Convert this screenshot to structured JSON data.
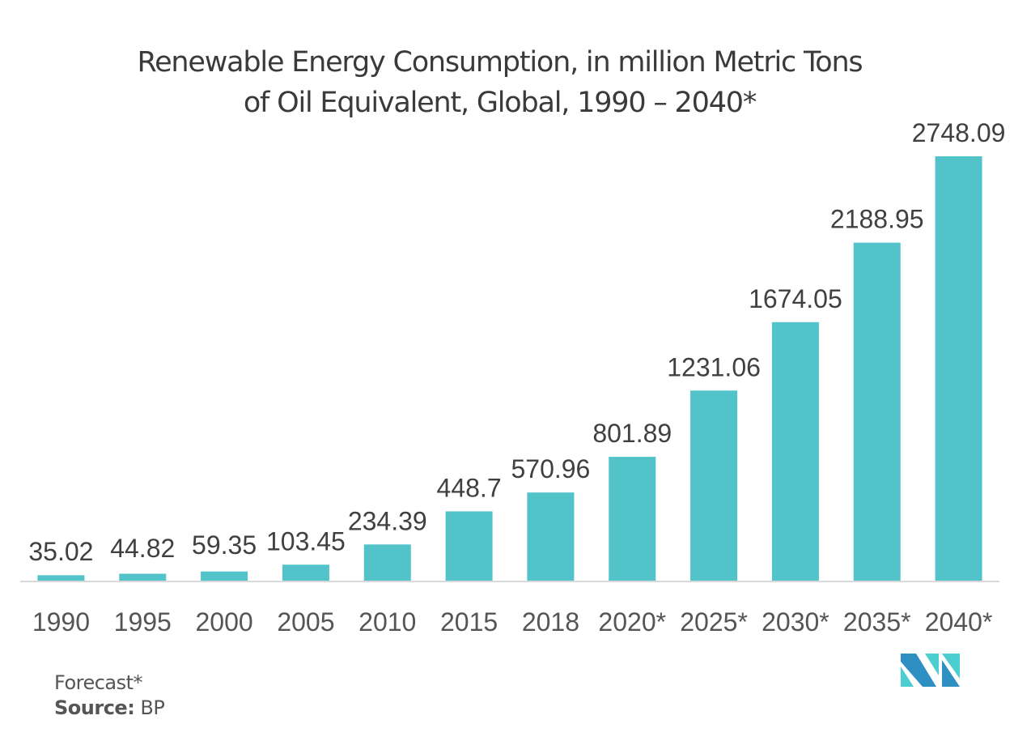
{
  "chart_data": {
    "type": "bar",
    "title": "Renewable Energy Consumption, in million Metric Tons of Oil Equivalent, Global, 1990 – 2040*",
    "title_lines": [
      "Renewable Energy Consumption, in million Metric Tons",
      "of Oil Equivalent, Global, 1990 – 2040*"
    ],
    "categories": [
      "1990",
      "1995",
      "2000",
      "2005",
      "2010",
      "2015",
      "2018",
      "2020*",
      "2025*",
      "2030*",
      "2035*",
      "2040*"
    ],
    "values": [
      35.02,
      44.82,
      59.35,
      103.45,
      234.39,
      448.7,
      570.96,
      801.89,
      1231.06,
      1674.05,
      2188.95,
      2748.09
    ],
    "value_labels": [
      "35.02",
      "44.82",
      "59.35",
      "103.45",
      "234.39",
      "448.7",
      "570.96",
      "801.89",
      "1231.06",
      "1674.05",
      "2188.95",
      "2748.09"
    ],
    "xlabel": "",
    "ylabel": "",
    "ylim": [
      0,
      2748.09
    ],
    "grid": false,
    "legend": "none",
    "bar_color": "#52c3c9",
    "axis_color": "#d9d9d9"
  },
  "footnote": {
    "forecast": "Forecast*",
    "source_label": "Source:",
    "source_value": " BP"
  },
  "logo": {
    "name": "Mordor Intelligence logo",
    "colors": [
      "#2e8fc2",
      "#4ccdd0"
    ]
  }
}
